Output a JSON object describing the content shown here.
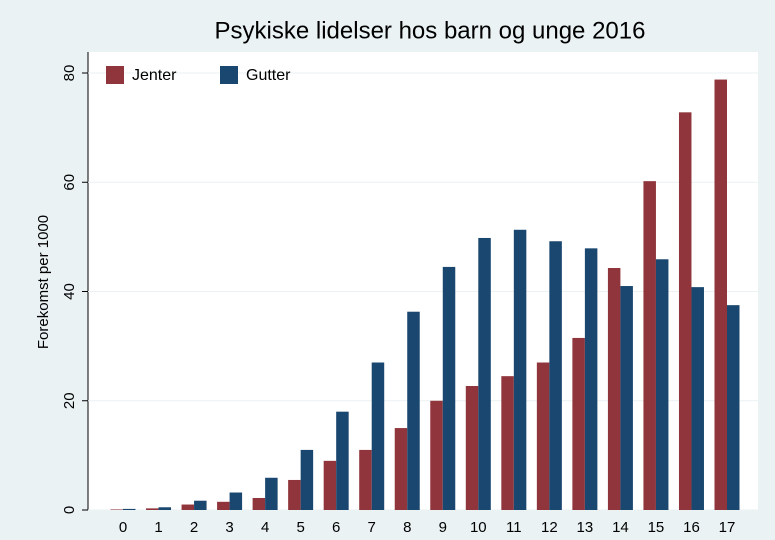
{
  "chart_data": {
    "type": "bar",
    "title": "Psykiske lidelser hos barn og unge 2016",
    "y_label": "Forekomst per 1000",
    "categories": [
      "0",
      "1",
      "2",
      "3",
      "4",
      "5",
      "6",
      "7",
      "8",
      "9",
      "10",
      "11",
      "12",
      "13",
      "14",
      "15",
      "16",
      "17"
    ],
    "series": [
      {
        "name": "Jenter",
        "color": "#90353b",
        "values": [
          0.1,
          0.3,
          1,
          1.5,
          2.2,
          5.5,
          9,
          11,
          15,
          20,
          22.7,
          24.5,
          27,
          31.5,
          44.3,
          60.2,
          72.8,
          78.8
        ]
      },
      {
        "name": "Gutter",
        "color": "#1a476f",
        "values": [
          0.2,
          0.5,
          1.7,
          3.2,
          5.9,
          11,
          18,
          27,
          36.3,
          44.5,
          49.8,
          51.3,
          49.2,
          47.9,
          41,
          45.9,
          40.8,
          37.5
        ]
      }
    ],
    "ylim": [
      0,
      80
    ],
    "yticks": [
      0,
      20,
      40,
      60,
      80
    ],
    "grid": true,
    "legend": "top-left"
  }
}
